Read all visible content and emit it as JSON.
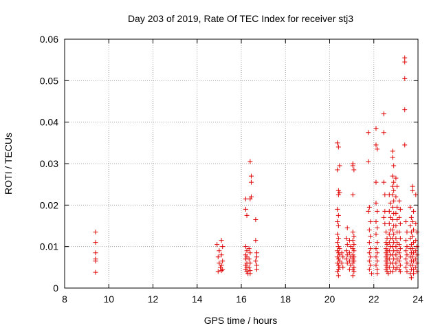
{
  "chart_data": {
    "type": "scatter",
    "title": "Day 203 of 2019, Rate Of TEC Index for receiver stj3",
    "xlabel": "GPS time / hours",
    "ylabel": "ROTI / TECUs",
    "xlim": [
      8,
      24
    ],
    "ylim": [
      0,
      0.06
    ],
    "xticks": [
      8,
      10,
      12,
      14,
      16,
      18,
      20,
      22,
      24
    ],
    "yticks": [
      0,
      0.01,
      0.02,
      0.03,
      0.04,
      0.05,
      0.06
    ],
    "ytick_labels": [
      "0",
      "0.01",
      "0.02",
      "0.03",
      "0.04",
      "0.05",
      "0.06"
    ],
    "grid": true,
    "marker": "+",
    "color": "#e00000",
    "series": [
      {
        "name": "ROTI",
        "points": [
          [
            9.4,
            0.0135
          ],
          [
            9.4,
            0.011
          ],
          [
            9.4,
            0.0085
          ],
          [
            9.4,
            0.007
          ],
          [
            9.4,
            0.0065
          ],
          [
            9.4,
            0.0038
          ],
          [
            14.9,
            0.0105
          ],
          [
            15.0,
            0.009
          ],
          [
            14.95,
            0.0075
          ],
          [
            15.0,
            0.006
          ],
          [
            15.05,
            0.005
          ],
          [
            14.95,
            0.004
          ],
          [
            15.1,
            0.0115
          ],
          [
            15.15,
            0.01
          ],
          [
            15.1,
            0.008
          ],
          [
            15.15,
            0.0065
          ],
          [
            15.1,
            0.0055
          ],
          [
            15.15,
            0.0045
          ],
          [
            15.1,
            0.0042
          ],
          [
            16.2,
            0.0215
          ],
          [
            16.2,
            0.019
          ],
          [
            16.25,
            0.0175
          ],
          [
            16.2,
            0.01
          ],
          [
            16.25,
            0.009
          ],
          [
            16.2,
            0.008
          ],
          [
            16.25,
            0.0075
          ],
          [
            16.2,
            0.007
          ],
          [
            16.25,
            0.006
          ],
          [
            16.2,
            0.0055
          ],
          [
            16.25,
            0.005
          ],
          [
            16.2,
            0.0045
          ],
          [
            16.25,
            0.004
          ],
          [
            16.3,
            0.0035
          ],
          [
            16.35,
            0.0095
          ],
          [
            16.4,
            0.0085
          ],
          [
            16.35,
            0.007
          ],
          [
            16.4,
            0.006
          ],
          [
            16.35,
            0.005
          ],
          [
            16.4,
            0.0042
          ],
          [
            16.4,
            0.0035
          ],
          [
            16.4,
            0.0305
          ],
          [
            16.45,
            0.027
          ],
          [
            16.45,
            0.0255
          ],
          [
            16.45,
            0.022
          ],
          [
            16.4,
            0.0215
          ],
          [
            16.65,
            0.0165
          ],
          [
            16.65,
            0.0115
          ],
          [
            16.7,
            0.0085
          ],
          [
            16.7,
            0.0075
          ],
          [
            16.65,
            0.0065
          ],
          [
            16.7,
            0.0055
          ],
          [
            16.7,
            0.0045
          ],
          [
            20.35,
            0.035
          ],
          [
            20.4,
            0.034
          ],
          [
            20.45,
            0.0295
          ],
          [
            20.35,
            0.0285
          ],
          [
            20.4,
            0.0235
          ],
          [
            20.45,
            0.023
          ],
          [
            20.4,
            0.0225
          ],
          [
            20.35,
            0.019
          ],
          [
            20.4,
            0.0175
          ],
          [
            20.35,
            0.016
          ],
          [
            20.4,
            0.015
          ],
          [
            20.35,
            0.013
          ],
          [
            20.4,
            0.012
          ],
          [
            20.35,
            0.011
          ],
          [
            20.4,
            0.01
          ],
          [
            20.45,
            0.0095
          ],
          [
            20.35,
            0.009
          ],
          [
            20.4,
            0.0085
          ],
          [
            20.45,
            0.008
          ],
          [
            20.35,
            0.0075
          ],
          [
            20.4,
            0.007
          ],
          [
            20.45,
            0.0065
          ],
          [
            20.35,
            0.006
          ],
          [
            20.4,
            0.0055
          ],
          [
            20.45,
            0.005
          ],
          [
            20.4,
            0.0045
          ],
          [
            20.35,
            0.004
          ],
          [
            20.4,
            0.003
          ],
          [
            20.55,
            0.0085
          ],
          [
            20.6,
            0.0075
          ],
          [
            20.55,
            0.006
          ],
          [
            20.6,
            0.005
          ],
          [
            20.8,
            0.0145
          ],
          [
            20.75,
            0.012
          ],
          [
            20.8,
            0.0105
          ],
          [
            20.75,
            0.009
          ],
          [
            20.8,
            0.008
          ],
          [
            20.75,
            0.007
          ],
          [
            20.8,
            0.006
          ],
          [
            20.9,
            0.0115
          ],
          [
            20.95,
            0.01
          ],
          [
            20.9,
            0.0085
          ],
          [
            20.95,
            0.0075
          ],
          [
            20.9,
            0.0065
          ],
          [
            20.95,
            0.0055
          ],
          [
            20.9,
            0.0045
          ],
          [
            21.05,
            0.03
          ],
          [
            21.05,
            0.0295
          ],
          [
            21.1,
            0.0285
          ],
          [
            21.05,
            0.0225
          ],
          [
            21.05,
            0.0135
          ],
          [
            21.1,
            0.0125
          ],
          [
            21.05,
            0.0115
          ],
          [
            21.1,
            0.0105
          ],
          [
            21.05,
            0.0095
          ],
          [
            21.1,
            0.009
          ],
          [
            21.05,
            0.008
          ],
          [
            21.1,
            0.0075
          ],
          [
            21.05,
            0.007
          ],
          [
            21.1,
            0.0065
          ],
          [
            21.05,
            0.006
          ],
          [
            21.1,
            0.005
          ],
          [
            21.05,
            0.0045
          ],
          [
            21.1,
            0.004
          ],
          [
            21.05,
            0.003
          ],
          [
            21.75,
            0.0375
          ],
          [
            21.75,
            0.0305
          ],
          [
            21.8,
            0.0195
          ],
          [
            21.75,
            0.0185
          ],
          [
            21.85,
            0.016
          ],
          [
            21.8,
            0.014
          ],
          [
            21.85,
            0.0125
          ],
          [
            21.8,
            0.011
          ],
          [
            21.85,
            0.0095
          ],
          [
            21.8,
            0.0085
          ],
          [
            21.85,
            0.0075
          ],
          [
            21.8,
            0.0065
          ],
          [
            21.85,
            0.0055
          ],
          [
            21.8,
            0.0045
          ],
          [
            21.9,
            0.0035
          ],
          [
            22.1,
            0.0385
          ],
          [
            22.1,
            0.0345
          ],
          [
            22.15,
            0.0335
          ],
          [
            22.1,
            0.0255
          ],
          [
            22.1,
            0.0205
          ],
          [
            22.15,
            0.0185
          ],
          [
            22.1,
            0.016
          ],
          [
            22.15,
            0.0145
          ],
          [
            22.1,
            0.013
          ],
          [
            22.15,
            0.011
          ],
          [
            22.1,
            0.0095
          ],
          [
            22.15,
            0.0085
          ],
          [
            22.1,
            0.0075
          ],
          [
            22.15,
            0.0065
          ],
          [
            22.1,
            0.0055
          ],
          [
            22.15,
            0.0045
          ],
          [
            22.15,
            0.0035
          ],
          [
            22.45,
            0.042
          ],
          [
            22.45,
            0.0375
          ],
          [
            22.45,
            0.0255
          ],
          [
            22.5,
            0.0225
          ],
          [
            22.5,
            0.0185
          ],
          [
            22.45,
            0.017
          ],
          [
            22.5,
            0.0155
          ],
          [
            22.55,
            0.0135
          ],
          [
            22.6,
            0.012
          ],
          [
            22.55,
            0.011
          ],
          [
            22.6,
            0.0105
          ],
          [
            22.55,
            0.0095
          ],
          [
            22.6,
            0.009
          ],
          [
            22.55,
            0.0085
          ],
          [
            22.6,
            0.008
          ],
          [
            22.55,
            0.0075
          ],
          [
            22.6,
            0.007
          ],
          [
            22.55,
            0.0065
          ],
          [
            22.6,
            0.006
          ],
          [
            22.55,
            0.0055
          ],
          [
            22.6,
            0.005
          ],
          [
            22.55,
            0.0045
          ],
          [
            22.6,
            0.004
          ],
          [
            22.65,
            0.0035
          ],
          [
            22.7,
            0.0225
          ],
          [
            22.75,
            0.0205
          ],
          [
            22.7,
            0.0185
          ],
          [
            22.75,
            0.017
          ],
          [
            22.7,
            0.0155
          ],
          [
            22.75,
            0.014
          ],
          [
            22.7,
            0.013
          ],
          [
            22.75,
            0.012
          ],
          [
            22.7,
            0.011
          ],
          [
            22.75,
            0.01
          ],
          [
            22.7,
            0.009
          ],
          [
            22.75,
            0.008
          ],
          [
            22.7,
            0.007
          ],
          [
            22.75,
            0.006
          ],
          [
            22.7,
            0.005
          ],
          [
            22.75,
            0.004
          ],
          [
            22.85,
            0.033
          ],
          [
            22.85,
            0.0315
          ],
          [
            22.9,
            0.0295
          ],
          [
            22.85,
            0.027
          ],
          [
            22.9,
            0.0255
          ],
          [
            22.85,
            0.0245
          ],
          [
            22.9,
            0.0235
          ],
          [
            22.85,
            0.0225
          ],
          [
            22.9,
            0.021
          ],
          [
            22.85,
            0.0195
          ],
          [
            22.9,
            0.018
          ],
          [
            22.85,
            0.0165
          ],
          [
            22.9,
            0.015
          ],
          [
            22.85,
            0.014
          ],
          [
            22.9,
            0.013
          ],
          [
            22.85,
            0.012
          ],
          [
            22.9,
            0.011
          ],
          [
            22.85,
            0.01
          ],
          [
            22.9,
            0.009
          ],
          [
            22.85,
            0.008
          ],
          [
            22.9,
            0.007
          ],
          [
            22.85,
            0.006
          ],
          [
            22.9,
            0.005
          ],
          [
            22.85,
            0.004
          ],
          [
            23.0,
            0.0265
          ],
          [
            23.05,
            0.0245
          ],
          [
            23.0,
            0.022
          ],
          [
            23.05,
            0.0195
          ],
          [
            23.0,
            0.018
          ],
          [
            23.05,
            0.0165
          ],
          [
            23.0,
            0.015
          ],
          [
            23.05,
            0.0135
          ],
          [
            23.0,
            0.012
          ],
          [
            23.05,
            0.011
          ],
          [
            23.0,
            0.01
          ],
          [
            23.05,
            0.009
          ],
          [
            23.0,
            0.008
          ],
          [
            23.05,
            0.007
          ],
          [
            23.0,
            0.006
          ],
          [
            23.05,
            0.005
          ],
          [
            23.0,
            0.0045
          ],
          [
            23.15,
            0.021
          ],
          [
            23.2,
            0.019
          ],
          [
            23.15,
            0.017
          ],
          [
            23.2,
            0.0155
          ],
          [
            23.15,
            0.0135
          ],
          [
            23.2,
            0.012
          ],
          [
            23.15,
            0.0105
          ],
          [
            23.2,
            0.0095
          ],
          [
            23.15,
            0.0085
          ],
          [
            23.2,
            0.0075
          ],
          [
            23.15,
            0.0065
          ],
          [
            23.2,
            0.0055
          ],
          [
            23.15,
            0.0045
          ],
          [
            23.2,
            0.004
          ],
          [
            23.4,
            0.0555
          ],
          [
            23.4,
            0.0545
          ],
          [
            23.4,
            0.0505
          ],
          [
            23.4,
            0.043
          ],
          [
            23.4,
            0.0345
          ],
          [
            23.45,
            0.016
          ],
          [
            23.5,
            0.0135
          ],
          [
            23.45,
            0.0115
          ],
          [
            23.5,
            0.01
          ],
          [
            23.45,
            0.009
          ],
          [
            23.5,
            0.008
          ],
          [
            23.45,
            0.007
          ],
          [
            23.5,
            0.006
          ],
          [
            23.45,
            0.005
          ],
          [
            23.5,
            0.004
          ],
          [
            23.65,
            0.0195
          ],
          [
            23.7,
            0.017
          ],
          [
            23.65,
            0.015
          ],
          [
            23.7,
            0.0135
          ],
          [
            23.65,
            0.012
          ],
          [
            23.7,
            0.0105
          ],
          [
            23.65,
            0.0095
          ],
          [
            23.7,
            0.0085
          ],
          [
            23.65,
            0.0075
          ],
          [
            23.7,
            0.0065
          ],
          [
            23.65,
            0.0055
          ],
          [
            23.7,
            0.0045
          ],
          [
            23.65,
            0.0035
          ],
          [
            23.7,
            0.0025
          ],
          [
            23.75,
            0.0245
          ],
          [
            23.75,
            0.0235
          ],
          [
            23.8,
            0.0185
          ],
          [
            23.75,
            0.016
          ],
          [
            23.8,
            0.014
          ],
          [
            23.75,
            0.0125
          ],
          [
            23.8,
            0.011
          ],
          [
            23.75,
            0.0095
          ],
          [
            23.8,
            0.0085
          ],
          [
            23.75,
            0.0075
          ],
          [
            23.8,
            0.0065
          ],
          [
            23.75,
            0.0055
          ],
          [
            23.8,
            0.0045
          ],
          [
            23.8,
            0.0035
          ],
          [
            23.9,
            0.0225
          ],
          [
            23.9,
            0.0155
          ],
          [
            23.95,
            0.0135
          ],
          [
            23.9,
            0.0115
          ],
          [
            23.95,
            0.01
          ],
          [
            23.9,
            0.009
          ],
          [
            23.95,
            0.008
          ],
          [
            23.9,
            0.007
          ],
          [
            23.95,
            0.006
          ],
          [
            23.9,
            0.005
          ],
          [
            23.95,
            0.004
          ]
        ]
      }
    ]
  }
}
